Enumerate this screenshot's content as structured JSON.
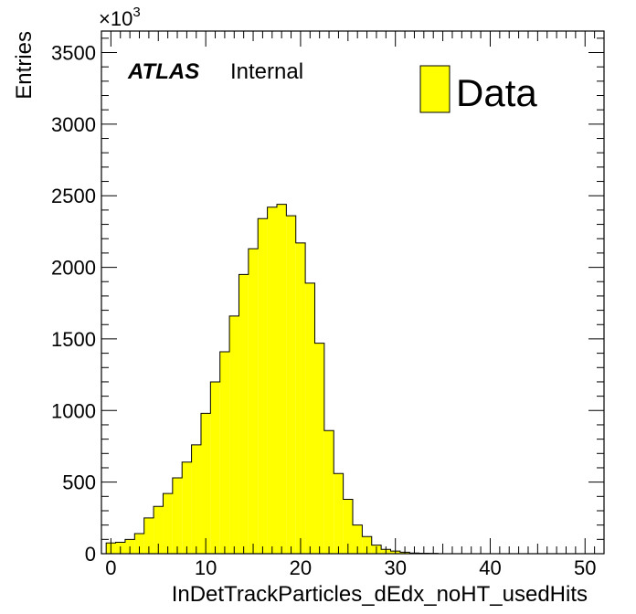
{
  "chart_data": {
    "type": "bar",
    "xlabel": "InDetTrackParticles_dEdx_noHT_usedHits",
    "ylabel": "Entries",
    "y_multiplier_label": "×10",
    "y_multiplier_exponent": "3",
    "xlim": [
      -1,
      52
    ],
    "ylim": [
      0,
      3650
    ],
    "x_ticks": [
      0,
      10,
      20,
      30,
      40,
      50
    ],
    "y_ticks": [
      0,
      500,
      1000,
      1500,
      2000,
      2500,
      3000,
      3500
    ],
    "bin_width": 1,
    "bin_starts": [
      -0.5,
      0.5,
      1.5,
      2.5,
      3.5,
      4.5,
      5.5,
      6.5,
      7.5,
      8.5,
      9.5,
      10.5,
      11.5,
      12.5,
      13.5,
      14.5,
      15.5,
      16.5,
      17.5,
      18.5,
      19.5,
      20.5,
      21.5,
      22.5,
      23.5,
      24.5,
      25.5,
      26.5,
      27.5,
      28.5,
      29.5,
      30.5,
      31.5,
      32.5,
      33.5
    ],
    "values": [
      75,
      80,
      100,
      140,
      250,
      330,
      420,
      530,
      640,
      760,
      980,
      1200,
      1410,
      1660,
      1950,
      2130,
      2340,
      2420,
      2440,
      2360,
      2170,
      1890,
      1470,
      860,
      560,
      380,
      200,
      120,
      60,
      30,
      18,
      10,
      5,
      3,
      2
    ],
    "series": [
      {
        "name": "Data",
        "color": "#ffff00"
      }
    ],
    "legend_position": "top-right",
    "annotation": {
      "bold": "ATLAS",
      "normal": "Internal"
    }
  }
}
